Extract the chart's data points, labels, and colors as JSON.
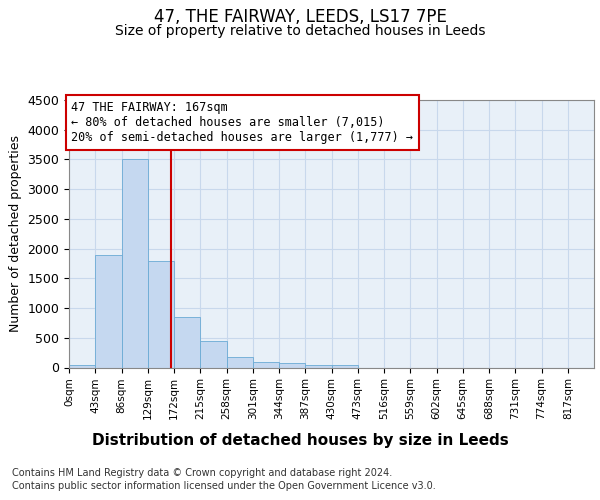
{
  "title": "47, THE FAIRWAY, LEEDS, LS17 7PE",
  "subtitle": "Size of property relative to detached houses in Leeds",
  "xlabel": "Distribution of detached houses by size in Leeds",
  "ylabel": "Number of detached properties",
  "bar_values": [
    50,
    1900,
    3500,
    1800,
    850,
    450,
    175,
    100,
    75,
    50,
    40,
    0,
    0,
    0,
    0,
    0,
    0,
    0,
    0,
    0
  ],
  "bin_edges": [
    0,
    43,
    86,
    129,
    172,
    215,
    258,
    301,
    344,
    387,
    430,
    473,
    516,
    559,
    602,
    645,
    688,
    731,
    774,
    817,
    860
  ],
  "bar_color": "#c5d8f0",
  "bar_edge_color": "#6aaad4",
  "grid_color": "#c8d8ec",
  "background_color": "#e8f0f8",
  "red_line_x": 167,
  "annotation_line1": "47 THE FAIRWAY: 167sqm",
  "annotation_line2": "← 80% of detached houses are smaller (7,015)",
  "annotation_line3": "20% of semi-detached houses are larger (1,777) →",
  "annotation_box_color": "#ffffff",
  "annotation_border_color": "#cc0000",
  "ylim": [
    0,
    4500
  ],
  "xlim": [
    0,
    860
  ],
  "footer_line1": "Contains HM Land Registry data © Crown copyright and database right 2024.",
  "footer_line2": "Contains public sector information licensed under the Open Government Licence v3.0.",
  "title_fontsize": 12,
  "subtitle_fontsize": 10,
  "tick_label_fontsize": 7.5,
  "ylabel_fontsize": 9,
  "xlabel_fontsize": 11,
  "annotation_fontsize": 8.5
}
